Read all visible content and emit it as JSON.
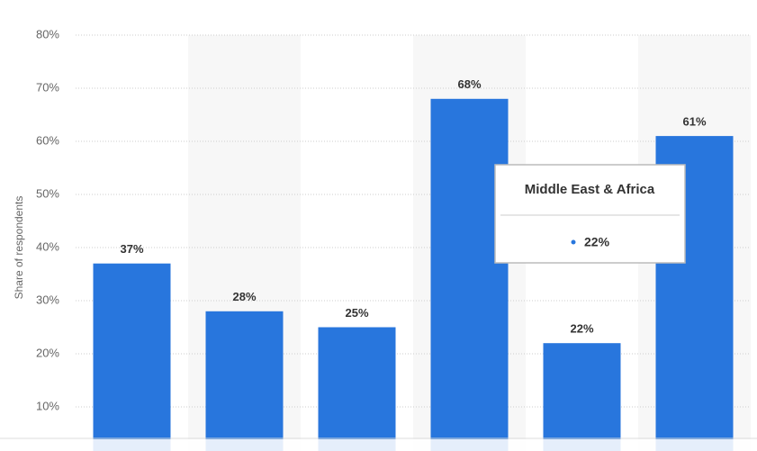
{
  "chart_data": {
    "type": "bar",
    "y_label": "Share of respondents",
    "categories": [
      null,
      null,
      null,
      null,
      "Middle East & Africa",
      null
    ],
    "values": [
      37,
      28,
      25,
      68,
      22,
      61
    ],
    "value_labels": [
      "37%",
      "28%",
      "25%",
      "68%",
      "22%",
      "61%"
    ],
    "color": "#2876dd",
    "ylim": [
      0,
      80
    ],
    "yticks": [
      {
        "value": 10,
        "label": "10%"
      },
      {
        "value": 20,
        "label": "20%"
      },
      {
        "value": 30,
        "label": "30%"
      },
      {
        "value": 40,
        "label": "40%"
      },
      {
        "value": 50,
        "label": "50%"
      },
      {
        "value": 60,
        "label": "60%"
      },
      {
        "value": 70,
        "label": "70%"
      },
      {
        "value": 80,
        "label": "80%"
      }
    ],
    "grid": true,
    "tooltip_index": 4
  }
}
